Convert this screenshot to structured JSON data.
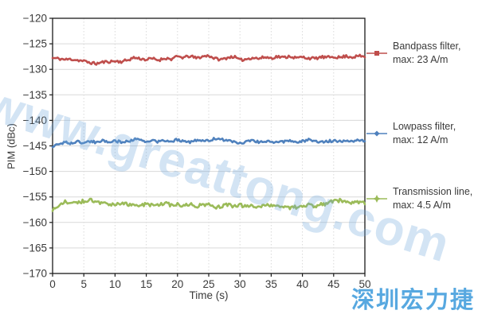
{
  "chart_data": {
    "type": "line",
    "title": "",
    "xlabel": "Time (s)",
    "ylabel": "PIM (dBc)",
    "xlim": [
      0,
      50
    ],
    "ylim": [
      -170,
      -120
    ],
    "x_ticks": [
      0,
      5,
      10,
      15,
      20,
      25,
      30,
      35,
      40,
      45,
      50
    ],
    "y_ticks": [
      -120,
      -125,
      -130,
      -135,
      -140,
      -145,
      -150,
      -155,
      -160,
      -165,
      -170
    ],
    "x_step": 1,
    "grid": true,
    "grid_style": {
      "horizontal": "solid",
      "vertical": "dotted"
    },
    "legend_position": "right-outside",
    "series": [
      {
        "name": "Bandpass filter, max: 23 A/m",
        "color": "#BF4E4C",
        "marker": "square",
        "noise": 0.55,
        "values": [
          -127.8,
          -127.9,
          -128.1,
          -128.0,
          -128.2,
          -128.4,
          -128.7,
          -128.9,
          -128.6,
          -128.5,
          -128.4,
          -128.5,
          -128.2,
          -127.7,
          -127.9,
          -128.1,
          -127.9,
          -128.2,
          -127.8,
          -128.0,
          -127.5,
          -127.7,
          -127.4,
          -127.8,
          -127.5,
          -127.3,
          -127.9,
          -128.1,
          -127.7,
          -127.5,
          -128.2,
          -128.0,
          -127.7,
          -127.9,
          -127.6,
          -127.8,
          -127.5,
          -127.7,
          -127.4,
          -127.8,
          -127.6,
          -127.8,
          -127.9,
          -127.6,
          -127.7,
          -127.5,
          -127.7,
          -127.4,
          -127.6,
          -127.4,
          -127.5
        ]
      },
      {
        "name": "Lowpass filter, max: 12 A/m",
        "color": "#4F81BD",
        "marker": "diamond",
        "noise": 0.5,
        "values": [
          -145.2,
          -144.6,
          -144.3,
          -144.5,
          -144.2,
          -144.4,
          -144.1,
          -144.3,
          -144.0,
          -144.2,
          -144.0,
          -144.3,
          -144.1,
          -143.7,
          -143.9,
          -144.2,
          -144.0,
          -144.2,
          -143.9,
          -144.1,
          -143.8,
          -144.0,
          -144.2,
          -144.0,
          -143.9,
          -144.1,
          -143.5,
          -143.7,
          -144.0,
          -144.2,
          -144.5,
          -144.2,
          -144.0,
          -144.2,
          -144.1,
          -144.3,
          -144.1,
          -144.2,
          -144.0,
          -144.2,
          -144.1,
          -143.8,
          -144.0,
          -144.2,
          -144.1,
          -144.0,
          -144.1,
          -143.9,
          -144.0,
          -143.9,
          -144.0
        ]
      },
      {
        "name": "Transmission line, max: 4.5 A/m",
        "color": "#9BBB59",
        "marker": "star",
        "noise": 0.7,
        "values": [
          -157.6,
          -156.8,
          -156.0,
          -156.3,
          -156.1,
          -155.8,
          -155.6,
          -156.0,
          -156.3,
          -156.6,
          -156.4,
          -156.2,
          -156.5,
          -156.3,
          -156.6,
          -156.4,
          -156.7,
          -156.5,
          -156.3,
          -156.6,
          -156.4,
          -156.7,
          -156.5,
          -156.8,
          -156.6,
          -156.4,
          -157.1,
          -156.8,
          -156.6,
          -156.8,
          -156.6,
          -156.9,
          -156.7,
          -156.9,
          -156.6,
          -156.8,
          -157.0,
          -156.8,
          -157.1,
          -157.0,
          -156.8,
          -156.6,
          -156.8,
          -156.5,
          -156.3,
          -155.8,
          -155.7,
          -155.9,
          -156.2,
          -156.1,
          -156.3
        ]
      }
    ]
  },
  "legend": {
    "entries": [
      {
        "line1": "Bandpass filter,",
        "line2": "max: 23 A/m",
        "marker": "square"
      },
      {
        "line1": "Lowpass filter,",
        "line2": "max: 12 A/m",
        "marker": "diamond"
      },
      {
        "line1": "Transmission line,",
        "line2": "max: 4.5 A/m",
        "marker": "star"
      }
    ]
  },
  "watermarks": {
    "diagonal_text": "www.greattong.com",
    "diagonal_color": "#A9CCEB",
    "corner_text": "深圳宏力捷",
    "corner_color": "#57A8E0"
  },
  "colors": {
    "grid": "#D9D9D9",
    "axis": "#1A1A1A",
    "text": "#3A3A3A"
  }
}
